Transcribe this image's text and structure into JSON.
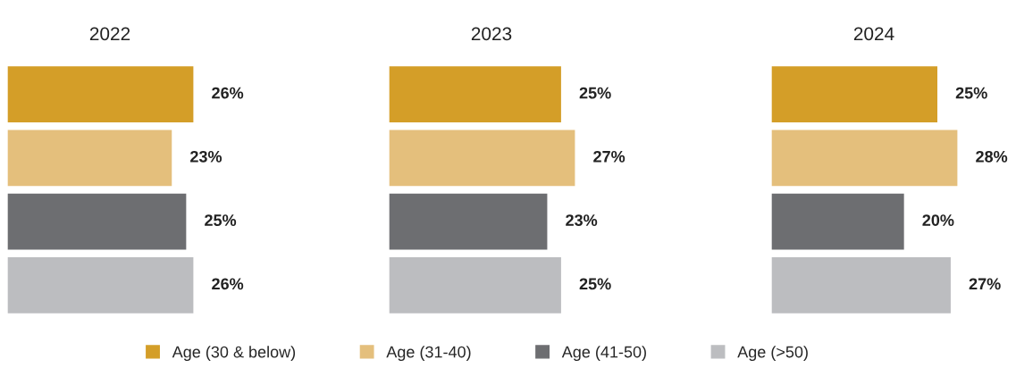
{
  "chart_data": [
    {
      "type": "bar",
      "orientation": "horizontal",
      "title": "2022",
      "categories": [
        null
      ],
      "legend": "bottom",
      "tick_labels": false,
      "series": [
        {
          "name": "Age (30 & below)",
          "color": "#d49e28",
          "values": [
            26
          ],
          "value_labels": [
            "26%"
          ]
        },
        {
          "name": "Age (31-40)",
          "color": "#e4bf7c",
          "values": [
            23
          ],
          "value_labels": [
            "23%"
          ]
        },
        {
          "name": "Age (41-50)",
          "color": "#6d6e71",
          "values": [
            25
          ],
          "value_labels": [
            "25%"
          ]
        },
        {
          "name": "Age (>50)",
          "color": "#bcbdc0",
          "values": [
            26
          ],
          "value_labels": [
            "26%"
          ]
        }
      ]
    },
    {
      "type": "bar",
      "orientation": "horizontal",
      "title": "2023",
      "categories": [
        null
      ],
      "tick_labels": false,
      "series": [
        {
          "color": "#d49e28",
          "values": [
            25
          ],
          "value_labels": [
            "25%"
          ]
        },
        {
          "color": "#e4bf7c",
          "values": [
            27
          ],
          "value_labels": [
            "27%"
          ]
        },
        {
          "color": "#6d6e71",
          "values": [
            23
          ],
          "value_labels": [
            "23%"
          ]
        },
        {
          "color": "#bcbdc0",
          "values": [
            25
          ],
          "value_labels": [
            "25%"
          ]
        }
      ]
    },
    {
      "type": "bar",
      "orientation": "horizontal",
      "title": "2024",
      "categories": [
        null
      ],
      "tick_labels": false,
      "series": [
        {
          "color": "#d49e28",
          "values": [
            25
          ],
          "value_labels": [
            "25%"
          ]
        },
        {
          "color": "#e4bf7c",
          "values": [
            28
          ],
          "value_labels": [
            "28%"
          ]
        },
        {
          "color": "#6d6e71",
          "values": [
            20
          ],
          "value_labels": [
            "20%"
          ]
        },
        {
          "color": "#bcbdc0",
          "values": [
            27
          ],
          "value_labels": [
            "27%"
          ]
        }
      ]
    }
  ]
}
